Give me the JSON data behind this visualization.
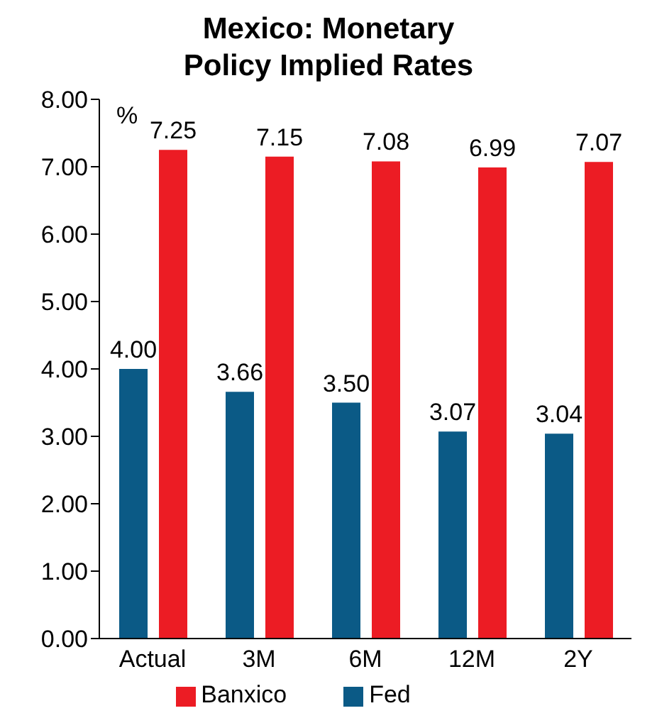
{
  "chart_data": {
    "type": "bar",
    "title": "Mexico: Monetary Policy Implied Rates",
    "ylabel": "%",
    "categories": [
      "Actual",
      "3M",
      "6M",
      "12M",
      "2Y"
    ],
    "series": [
      {
        "name": "Fed",
        "color": "#0b5a86",
        "values": [
          4.0,
          3.66,
          3.5,
          3.07,
          3.04
        ],
        "value_labels": [
          "4.00",
          "3.66",
          "3.50",
          "3.07",
          "3.04"
        ]
      },
      {
        "name": "Banxico",
        "color": "#ec1c24",
        "values": [
          7.25,
          7.15,
          7.08,
          6.99,
          7.07
        ],
        "value_labels": [
          "7.25",
          "7.15",
          "7.08",
          "6.99",
          "7.07"
        ]
      }
    ],
    "ylim": [
      0,
      8
    ],
    "yticks": [
      {
        "value": 0,
        "label": "0.00"
      },
      {
        "value": 1,
        "label": "1.00"
      },
      {
        "value": 2,
        "label": "2.00"
      },
      {
        "value": 3,
        "label": "3.00"
      },
      {
        "value": 4,
        "label": "4.00"
      },
      {
        "value": 5,
        "label": "5.00"
      },
      {
        "value": 6,
        "label": "6.00"
      },
      {
        "value": 7,
        "label": "7.00"
      },
      {
        "value": 8,
        "label": "8.00"
      }
    ],
    "grid": false,
    "legend": "bottom"
  }
}
